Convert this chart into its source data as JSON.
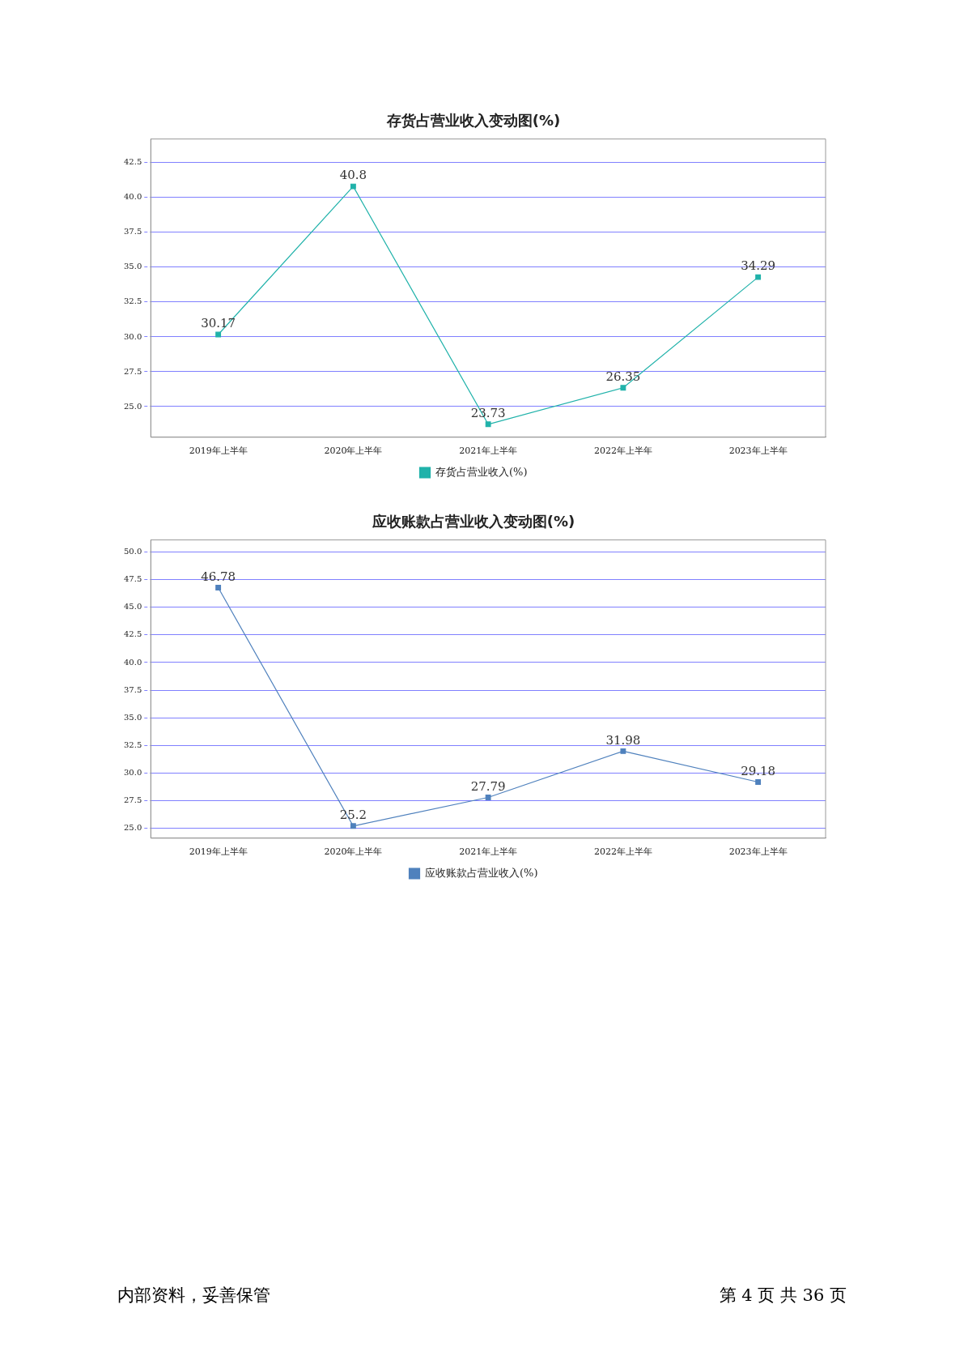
{
  "chart_data": [
    {
      "type": "line",
      "title": "存货占营业收入变动图(%)",
      "categories": [
        "2019年上半年",
        "2020年上半年",
        "2021年上半年",
        "2022年上半年",
        "2023年上半年"
      ],
      "series": [
        {
          "name": "存货占营业收入(%)",
          "color": "#20b2aa",
          "values": [
            30.17,
            40.8,
            23.73,
            26.35,
            34.29
          ]
        }
      ],
      "ylim": [
        22.8,
        44.2
      ],
      "yticks": [
        {
          "value": 25,
          "label": "25.0"
        },
        {
          "value": 27.5,
          "label": "27.5"
        },
        {
          "value": 30,
          "label": "30.0"
        },
        {
          "value": 32.5,
          "label": "32.5"
        },
        {
          "value": 35,
          "label": "35.0"
        },
        {
          "value": 37.5,
          "label": "37.5"
        },
        {
          "value": 40,
          "label": "40.0"
        },
        {
          "value": 42.5,
          "label": "42.5"
        }
      ],
      "grid": "y",
      "legend": "bottom",
      "marker": "square",
      "data_labels": true
    },
    {
      "type": "line",
      "title": "应收账款占营业收入变动图(%)",
      "categories": [
        "2019年上半年",
        "2020年上半年",
        "2021年上半年",
        "2022年上半年",
        "2023年上半年"
      ],
      "series": [
        {
          "name": "应收账款占营业收入(%)",
          "color": "#4f81bd",
          "values": [
            46.78,
            25.2,
            27.79,
            31.98,
            29.18
          ]
        }
      ],
      "ylim": [
        24.1,
        51.1
      ],
      "yticks": [
        {
          "value": 25,
          "label": "25.0"
        },
        {
          "value": 27.5,
          "label": "27.5"
        },
        {
          "value": 30,
          "label": "30.0"
        },
        {
          "value": 32.5,
          "label": "32.5"
        },
        {
          "value": 35,
          "label": "35.0"
        },
        {
          "value": 37.5,
          "label": "37.5"
        },
        {
          "value": 40,
          "label": "40.0"
        },
        {
          "value": 42.5,
          "label": "42.5"
        },
        {
          "value": 45,
          "label": "45.0"
        },
        {
          "value": 47.5,
          "label": "47.5"
        },
        {
          "value": 50,
          "label": "50.0"
        }
      ],
      "grid": "y",
      "legend": "bottom",
      "marker": "square",
      "data_labels": true,
      "annotations": [
        "内部资料，妥善保管",
        "第 4 页   共 36 页"
      ]
    }
  ]
}
